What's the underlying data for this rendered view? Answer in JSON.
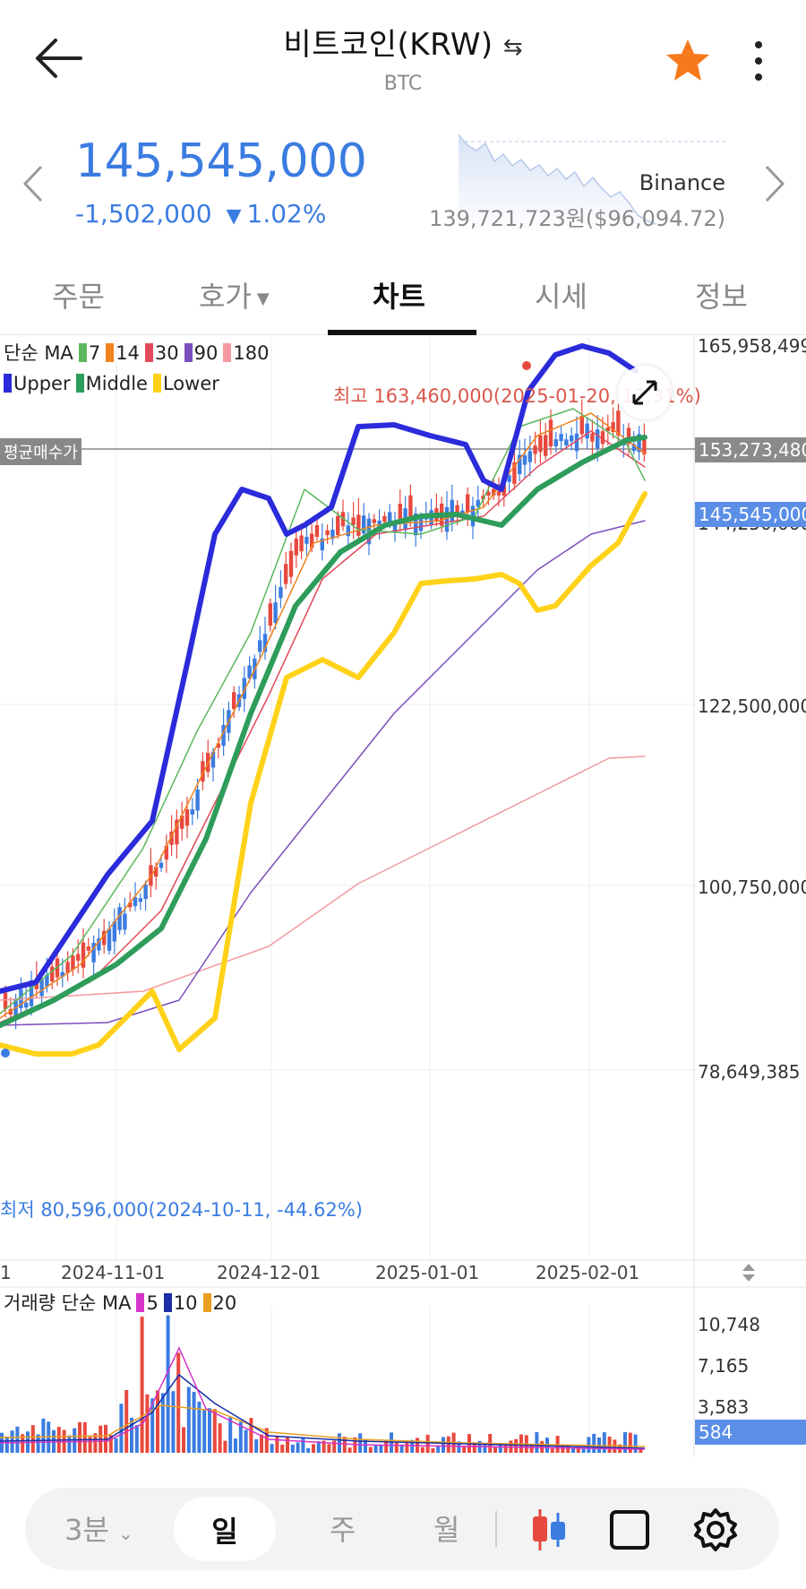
{
  "header": {
    "title": "비트코인(KRW)",
    "swap_icon": "⇆",
    "symbol": "BTC"
  },
  "price": {
    "current": "145,545,000",
    "change": "-1,502,000",
    "change_pct": "1.02%",
    "direction_icon": "▼",
    "color": "#3b7ce1"
  },
  "exchange": {
    "name": "Binance",
    "price": "139,721,723원($96,094.72)"
  },
  "tabs": [
    {
      "label": "주문"
    },
    {
      "label": "호가"
    },
    {
      "label": "차트"
    },
    {
      "label": "시세"
    },
    {
      "label": "정보"
    }
  ],
  "chart": {
    "ma_legend": {
      "label": "단순 MA",
      "periods": [
        "7",
        "14",
        "30",
        "90",
        "180"
      ]
    },
    "bb_legend": [
      "Upper",
      "Middle",
      "Lower"
    ],
    "y_labels": [
      "165,958,499",
      "122,500,000",
      "100,750,000",
      "78,649,385"
    ],
    "y_hidden_label": "144,250,000",
    "avg_buy_label": "평균매수가",
    "avg_buy_value": "153,273,480",
    "current_tag": "145,545,000",
    "x_labels": [
      "1",
      "2024-11-01",
      "2024-12-01",
      "2025-01-01",
      "2025-02-01"
    ],
    "high_annotation": "최고 163,460,000(2025-01-20, 12.31%)",
    "low_annotation": "최저 80,596,000(2024-10-11, -44.62%)",
    "volume_legend": {
      "label": "거래량 단순 MA",
      "periods": [
        "5",
        "10",
        "20"
      ]
    },
    "volume_labels": [
      "10,748",
      "7,165",
      "3,583"
    ],
    "volume_current": "584",
    "colors": {
      "up": "#e8493e",
      "down": "#3b7ce1",
      "ma7": "#5cb85c",
      "ma14": "#f0821e",
      "ma30": "#e04a5a",
      "ma90": "#7a4fbd",
      "ma180": "#f29aa0",
      "bb_upper": "#2b2bdb",
      "bb_middle": "#2e9c5a",
      "bb_lower": "#ffd21a"
    }
  },
  "bottom_bar": {
    "interval": "3분",
    "day": "일",
    "week": "주",
    "month": "월"
  }
}
